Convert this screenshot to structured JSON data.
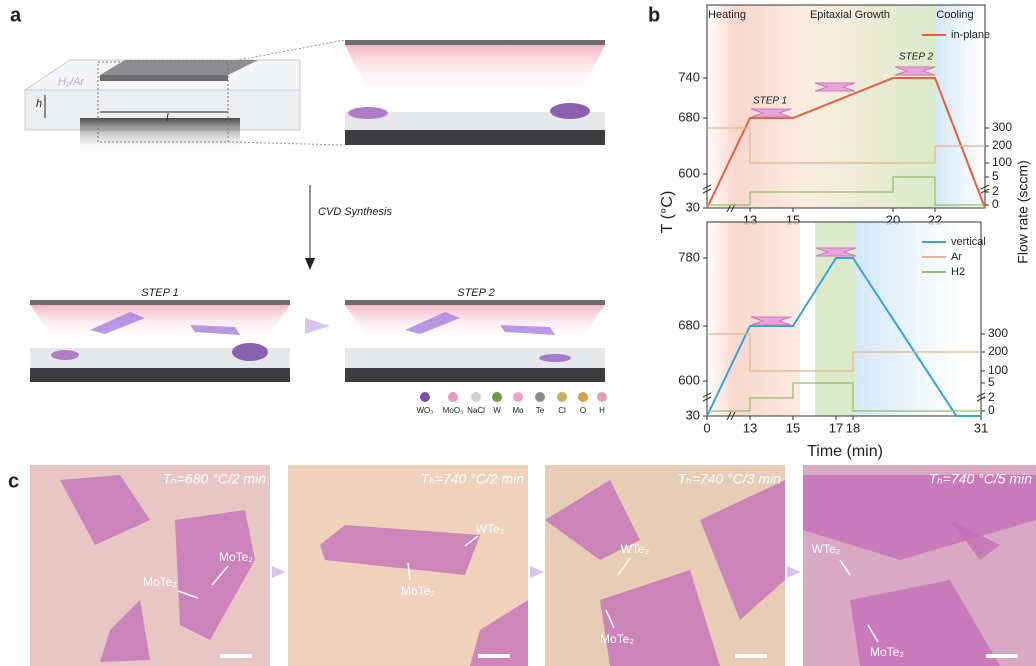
{
  "panel_labels": [
    "a",
    "b",
    "c"
  ],
  "panel_a": {
    "gas": "H₂/Ar",
    "height": "h",
    "length": "l",
    "process": "CVD Synthesis",
    "steps": [
      "STEP 1",
      "STEP 2"
    ],
    "legend": [
      "WO₃",
      "MoO₃",
      "NaCl",
      "W",
      "Mo",
      "Te",
      "Cl",
      "O",
      "H"
    ]
  },
  "chart_data": [
    {
      "type": "line",
      "phases": [
        "Heating",
        "Epitaxial Growth",
        "Cooling"
      ],
      "annotations": [
        "STEP 1",
        "STEP 2"
      ],
      "xlim": [
        0,
        31
      ],
      "xticks": [
        13,
        15,
        20,
        22
      ],
      "ylim": [
        30,
        840
      ],
      "yticks": [
        30,
        600,
        680,
        740
      ],
      "y2lim": [
        0,
        300
      ],
      "y2ticks": [
        0,
        2,
        5,
        100,
        200,
        300
      ],
      "series": [
        {
          "name": "in-plane",
          "color": "#e8603c",
          "x": [
            0,
            13,
            15,
            20,
            22,
            31
          ],
          "values": [
            30,
            680,
            680,
            740,
            740,
            30
          ]
        },
        {
          "color": "#e2b48f",
          "axis": "y2",
          "x": [
            0,
            13,
            13,
            22,
            22,
            31
          ],
          "values": [
            300,
            300,
            100,
            100,
            200,
            200
          ]
        },
        {
          "color": "#8fbf6a",
          "axis": "y2",
          "x": [
            0,
            13,
            13,
            20,
            20,
            22,
            22,
            31
          ],
          "values": [
            0,
            0,
            2,
            2,
            5,
            5,
            0,
            0
          ]
        }
      ]
    },
    {
      "type": "line",
      "xlabel": "Time (min)",
      "ylabel": "T (°C)",
      "y2label": "Flow rate (sccm)",
      "xlim": [
        0,
        31
      ],
      "xticks": [
        0,
        13,
        15,
        17,
        18,
        31
      ],
      "ylim": [
        30,
        820
      ],
      "yticks": [
        30,
        600,
        680,
        780
      ],
      "y2lim": [
        0,
        300
      ],
      "y2ticks": [
        0,
        2,
        5,
        100,
        200,
        300
      ],
      "series": [
        {
          "name": "vertical",
          "color": "#3aa3d8",
          "x": [
            0,
            13,
            15,
            17,
            18,
            28.5,
            31
          ],
          "values": [
            30,
            680,
            680,
            780,
            780,
            30,
            30
          ]
        },
        {
          "name": "Ar",
          "color": "#e2b48f",
          "axis": "y2",
          "x": [
            0,
            13,
            13,
            18,
            18,
            31
          ],
          "values": [
            300,
            300,
            100,
            100,
            200,
            200
          ]
        },
        {
          "name": "H2",
          "color": "#8fbf6a",
          "axis": "y2",
          "x": [
            0,
            13,
            13,
            15,
            15,
            18,
            18,
            31
          ],
          "values": [
            0,
            0,
            2,
            2,
            5,
            5,
            0,
            0
          ]
        }
      ]
    }
  ],
  "panel_c": {
    "images": [
      {
        "condition": "Tₕ=680 °C/2 min",
        "labels": [
          "MoTe₂",
          "MoTe₂"
        ]
      },
      {
        "condition": "Tₕ=740 °C/2 min",
        "labels": [
          "WTe₂",
          "MoTe₂"
        ]
      },
      {
        "condition": "Tₕ=740 °C/3 min",
        "labels": [
          "WTe₂",
          "MoTe₂"
        ]
      },
      {
        "condition": "Tₕ=740 °C/5 min",
        "labels": [
          "WTe₂",
          "MoTe₂"
        ]
      }
    ]
  }
}
